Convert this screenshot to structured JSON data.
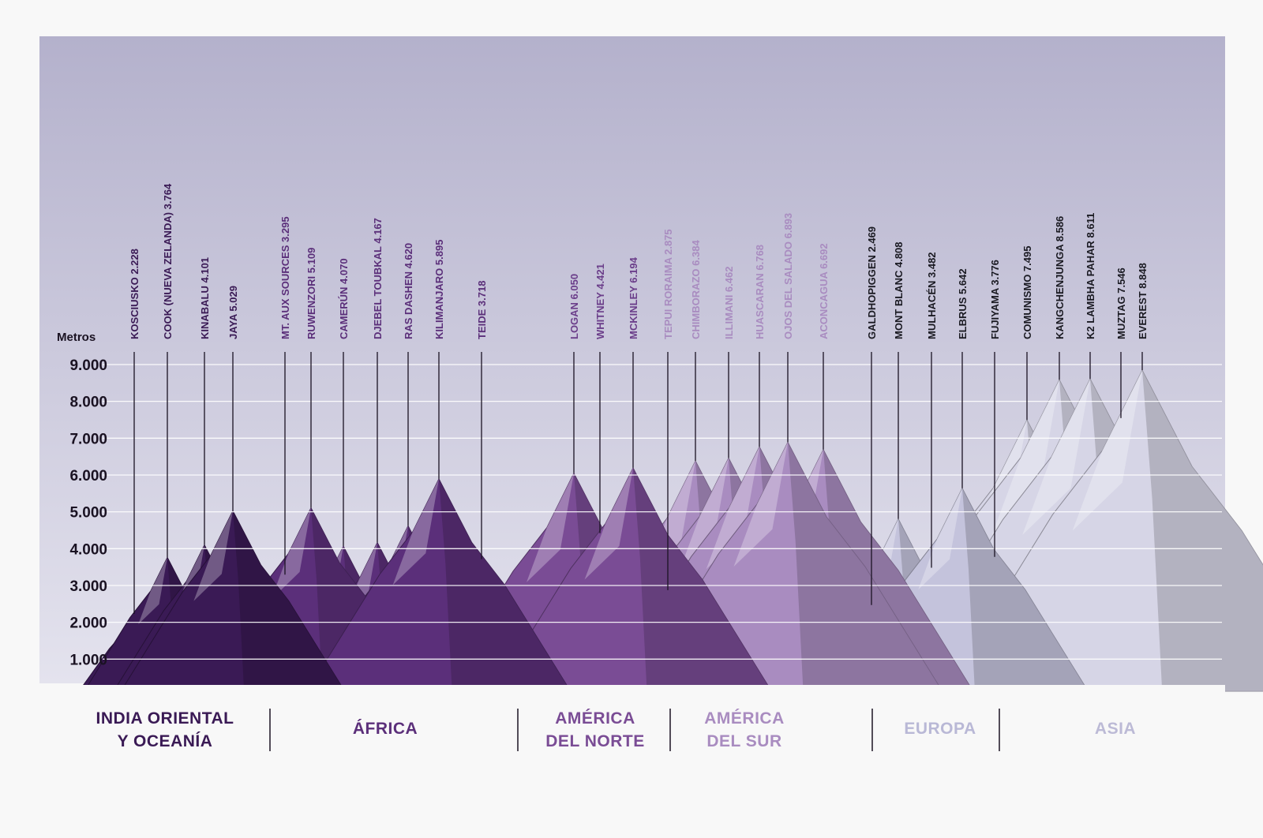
{
  "chart_data": {
    "type": "bar",
    "ylabel": "Metros",
    "ylim": [
      0,
      9000
    ],
    "yticks": [
      "1.000",
      "2.000",
      "3.000",
      "4.000",
      "5.000",
      "6.000",
      "7.000",
      "8.000",
      "9.000"
    ],
    "grid": true,
    "colors": {
      "sky_top": "#b4b1cc",
      "sky_bottom": "#e4e3ee",
      "oceania": "#3a1a55",
      "africa": "#5b2f7a",
      "north_america": "#7a4c95",
      "south_america": "#a98cc0",
      "europe": "#c4c3dc",
      "asia": "#d6d5e6"
    },
    "regions": [
      {
        "key": "oceania",
        "label_lines": [
          "INDIA ORIENTAL",
          "Y OCEANÍA"
        ],
        "color": "#3a1a55"
      },
      {
        "key": "africa",
        "label_lines": [
          "ÁFRICA"
        ],
        "color": "#5b2f7a"
      },
      {
        "key": "north_america",
        "label_lines": [
          "AMÉRICA",
          "DEL NORTE"
        ],
        "color": "#7a4c95"
      },
      {
        "key": "south_america",
        "label_lines": [
          "AMÉRICA",
          "DEL SUR"
        ],
        "color": "#a98cc0"
      },
      {
        "key": "europe",
        "label_lines": [
          "EUROPA"
        ],
        "color": "#b9b8d6"
      },
      {
        "key": "asia",
        "label_lines": [
          "ASIA"
        ],
        "color": "#bcbad6"
      }
    ],
    "peaks": [
      {
        "label": "KOSCIUSKO 2.228",
        "value": 2228,
        "region": "oceania"
      },
      {
        "label": "COOK (NUEVA ZELANDA) 3.764",
        "value": 3764,
        "region": "oceania"
      },
      {
        "label": "KINABALU 4.101",
        "value": 4101,
        "region": "oceania"
      },
      {
        "label": "JAYA 5.029",
        "value": 5029,
        "region": "oceania"
      },
      {
        "label": "MT. AUX SOURCES 3.295",
        "value": 3295,
        "region": "africa"
      },
      {
        "label": "RUWENZORI 5.109",
        "value": 5109,
        "region": "africa"
      },
      {
        "label": "CAMERÚN 4.070",
        "value": 4070,
        "region": "africa"
      },
      {
        "label": "DJEBEL TOUBKAL 4.167",
        "value": 4167,
        "region": "africa"
      },
      {
        "label": "RAS DASHEN 4.620",
        "value": 4620,
        "region": "africa"
      },
      {
        "label": "KILIMANJARO 5.895",
        "value": 5895,
        "region": "africa"
      },
      {
        "label": "TEIDE 3.718",
        "value": 3718,
        "region": "africa"
      },
      {
        "label": "LOGAN 6.050",
        "value": 6050,
        "region": "north_america"
      },
      {
        "label": "WHITNEY 4.421",
        "value": 4421,
        "region": "north_america"
      },
      {
        "label": "MCKINLEY 6.194",
        "value": 6194,
        "region": "north_america"
      },
      {
        "label": "TEPUI RORAIMA 2.875",
        "value": 2875,
        "region": "south_america"
      },
      {
        "label": "CHIMBORAZO 6.384",
        "value": 6384,
        "region": "south_america"
      },
      {
        "label": "ILLIMANI 6.462",
        "value": 6462,
        "region": "south_america"
      },
      {
        "label": "HUASCARAN 6.768",
        "value": 6768,
        "region": "south_america"
      },
      {
        "label": "OJOS DEL SALADO 6.893",
        "value": 6893,
        "region": "south_america"
      },
      {
        "label": "ACONCAGUA 6.692",
        "value": 6692,
        "region": "south_america"
      },
      {
        "label": "GALDHOPIGGEN 2.469",
        "value": 2469,
        "region": "europe"
      },
      {
        "label": "MONT BLANC 4.808",
        "value": 4808,
        "region": "europe"
      },
      {
        "label": "MULHACÉN 3.482",
        "value": 3482,
        "region": "europe"
      },
      {
        "label": "ELBRUS 5.642",
        "value": 5642,
        "region": "europe"
      },
      {
        "label": "FUJIYAMA 3.776",
        "value": 3776,
        "region": "asia"
      },
      {
        "label": "COMUNISMO 7.495",
        "value": 7495,
        "region": "asia"
      },
      {
        "label": "KANGCHENJUNGA 8.586",
        "value": 8586,
        "region": "asia"
      },
      {
        "label": "K2 LAMBHA PAHAR 8.611",
        "value": 8611,
        "region": "asia"
      },
      {
        "label": "MUZTAG 7.546",
        "value": 7546,
        "region": "asia"
      },
      {
        "label": "EVEREST 8.848",
        "value": 8848,
        "region": "asia"
      }
    ]
  }
}
